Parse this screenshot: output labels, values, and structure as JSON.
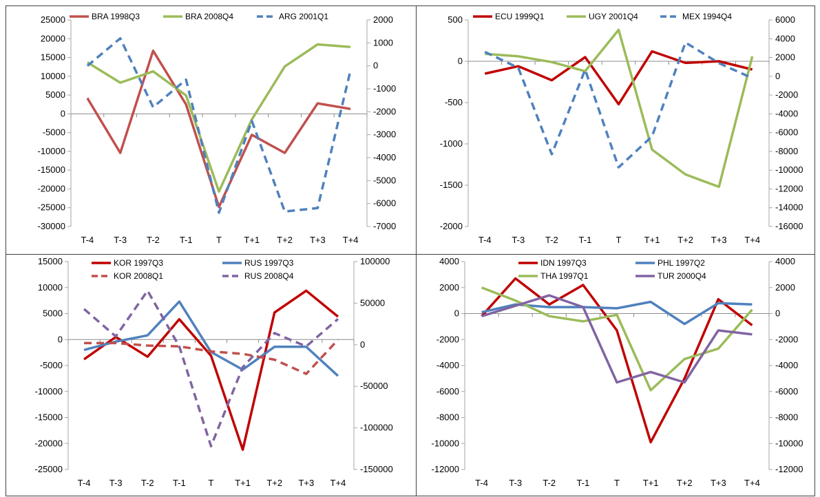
{
  "chart_data": [
    {
      "type": "line",
      "categories": [
        "T-4",
        "T-3",
        "T-2",
        "T-1",
        "T",
        "T+1",
        "T+2",
        "T+3",
        "T+4"
      ],
      "left_axis": {
        "ylim": [
          -30000,
          25000
        ],
        "ticks": [
          25000,
          20000,
          15000,
          10000,
          5000,
          0,
          -5000,
          -10000,
          -15000,
          -20000,
          -25000,
          -30000
        ]
      },
      "right_axis": {
        "ylim": [
          -7000,
          2000
        ],
        "ticks": [
          2000,
          1000,
          0,
          -1000,
          -2000,
          -3000,
          -4000,
          -5000,
          -6000,
          -7000
        ]
      },
      "series": [
        {
          "name": "BRA 1998Q3",
          "axis": "left",
          "color": "#c0504d",
          "dash": "solid",
          "values": [
            4200,
            -10400,
            16800,
            2500,
            -24800,
            -5600,
            -10400,
            2800,
            1300
          ]
        },
        {
          "name": "BRA 2008Q4",
          "axis": "left",
          "color": "#9bbb59",
          "dash": "solid",
          "values": [
            13700,
            8300,
            11300,
            4900,
            -20700,
            -1500,
            12600,
            18500,
            17800
          ]
        },
        {
          "name": "ARG 2001Q1",
          "axis": "right",
          "color": "#4f81bd",
          "dash": "dashed",
          "values": [
            0,
            1200,
            -1800,
            -600,
            -6400,
            -2400,
            -6350,
            -6200,
            -200
          ]
        }
      ]
    },
    {
      "type": "line",
      "categories": [
        "T-4",
        "T-3",
        "T-2",
        "T-1",
        "T",
        "T+1",
        "T+2",
        "T+3",
        "T+4"
      ],
      "left_axis": {
        "ylim": [
          -2000,
          500
        ],
        "ticks": [
          500,
          0,
          -500,
          -1000,
          -1500,
          -2000
        ]
      },
      "right_axis": {
        "ylim": [
          -16000,
          6000
        ],
        "ticks": [
          6000,
          4000,
          2000,
          0,
          -2000,
          -4000,
          -6000,
          -8000,
          -10000,
          -12000,
          -14000,
          -16000
        ]
      },
      "series": [
        {
          "name": "ECU 1999Q1",
          "axis": "left",
          "color": "#c00000",
          "dash": "solid",
          "values": [
            -150,
            -60,
            -230,
            50,
            -520,
            120,
            -20,
            0,
            -100
          ]
        },
        {
          "name": "UGY 2001Q4",
          "axis": "left",
          "color": "#9bbb59",
          "dash": "solid",
          "values": [
            90,
            60,
            -10,
            -120,
            380,
            -1070,
            -1370,
            -1520,
            60
          ]
        },
        {
          "name": "MEX 1994Q4",
          "axis": "right",
          "color": "#4f81bd",
          "dash": "dashed",
          "values": [
            2600,
            900,
            -8300,
            700,
            -9700,
            -6400,
            3600,
            1400,
            -200
          ]
        }
      ]
    },
    {
      "type": "line",
      "categories": [
        "T-4",
        "T-3",
        "T-2",
        "T-1",
        "T",
        "T+1",
        "T+2",
        "T+3",
        "T+4"
      ],
      "left_axis": {
        "ylim": [
          -25000,
          15000
        ],
        "ticks": [
          15000,
          10000,
          5000,
          0,
          -5000,
          -10000,
          -15000,
          -20000,
          -25000
        ]
      },
      "right_axis": {
        "ylim": [
          -150000,
          100000
        ],
        "ticks": [
          100000,
          50000,
          0,
          -50000,
          -100000,
          -150000
        ]
      },
      "series": [
        {
          "name": "KOR 1997Q3",
          "axis": "left",
          "color": "#c00000",
          "dash": "solid",
          "values": [
            -3800,
            500,
            -3300,
            3900,
            -3100,
            -21200,
            5200,
            9400,
            4400
          ]
        },
        {
          "name": "RUS 1997Q3",
          "axis": "left",
          "color": "#4f81bd",
          "dash": "solid",
          "values": [
            -2000,
            -400,
            800,
            7300,
            -2400,
            -5800,
            -1400,
            -1400,
            -7000
          ]
        },
        {
          "name": "KOR 2008Q1",
          "axis": "right",
          "color": "#c0504d",
          "dash": "dashed",
          "values": [
            2000,
            2000,
            -1000,
            -2000,
            -8000,
            -11000,
            -18000,
            -35000,
            6000
          ]
        },
        {
          "name": "RUS 2008Q4",
          "axis": "right",
          "color": "#8064a2",
          "dash": "dashed",
          "values": [
            43000,
            10000,
            65000,
            -2000,
            -122000,
            -27000,
            14000,
            -2000,
            31000
          ]
        }
      ]
    },
    {
      "type": "line",
      "categories": [
        "T-4",
        "T-3",
        "T-2",
        "T-1",
        "T",
        "T+1",
        "T+2",
        "T+3",
        "T+4"
      ],
      "left_axis": {
        "ylim": [
          -12000,
          4000
        ],
        "ticks": [
          4000,
          2000,
          0,
          -2000,
          -4000,
          -6000,
          -8000,
          -10000,
          -12000
        ]
      },
      "right_axis": {
        "ylim": [
          -12000,
          4000
        ],
        "ticks": [
          4000,
          2000,
          0,
          -2000,
          -4000,
          -6000,
          -8000,
          -10000,
          -12000
        ]
      },
      "series": [
        {
          "name": "IDN 1997Q3",
          "axis": "left",
          "color": "#c00000",
          "dash": "solid",
          "values": [
            -200,
            2700,
            700,
            2200,
            -1300,
            -9900,
            -5000,
            1100,
            -900
          ]
        },
        {
          "name": "PHL 1997Q2",
          "axis": "left",
          "color": "#4f81bd",
          "dash": "solid",
          "values": [
            100,
            700,
            500,
            500,
            400,
            900,
            -800,
            800,
            700
          ]
        },
        {
          "name": "THA 1997Q1",
          "axis": "left",
          "color": "#9bbb59",
          "dash": "solid",
          "values": [
            2000,
            1000,
            -200,
            -600,
            -100,
            -5900,
            -3500,
            -2700,
            300
          ]
        },
        {
          "name": "TUR 2000Q4",
          "axis": "right",
          "color": "#8064a2",
          "dash": "solid",
          "values": [
            -200,
            600,
            1400,
            500,
            -5300,
            -4500,
            -5300,
            -1300,
            -1600
          ]
        }
      ]
    }
  ]
}
